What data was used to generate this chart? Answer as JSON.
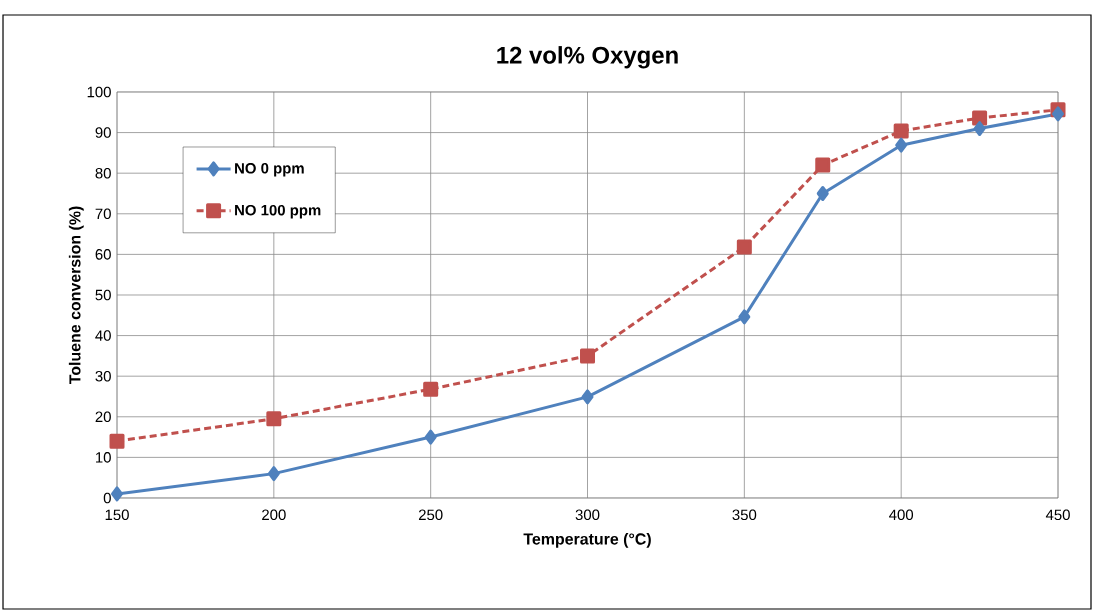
{
  "chart_data": {
    "type": "line",
    "title": "12 vol% Oxygen",
    "xlabel": "Temperature (°C)",
    "ylabel": "Toluene conversion (%)",
    "x": [
      150,
      200,
      250,
      300,
      350,
      375,
      400,
      425,
      450
    ],
    "series": [
      {
        "name": "NO 0 ppm",
        "color": "#4f81bd",
        "marker": "diamond",
        "line_style": "solid",
        "values": [
          1,
          6,
          15,
          24.9,
          44.6,
          75,
          86.9,
          91,
          94.6
        ]
      },
      {
        "name": "NO 100 ppm",
        "color": "#c0504d",
        "marker": "square",
        "line_style": "dashed",
        "values": [
          14,
          19.5,
          26.8,
          35,
          61.8,
          82,
          90.4,
          93.6,
          95.6
        ]
      }
    ],
    "xlim": [
      150,
      450
    ],
    "xticks": [
      150,
      200,
      250,
      300,
      350,
      400,
      450
    ],
    "ylim": [
      0,
      100
    ],
    "yticks": [
      0,
      10,
      20,
      30,
      40,
      50,
      60,
      70,
      80,
      90,
      100
    ],
    "grid": true,
    "legend": "top left"
  }
}
